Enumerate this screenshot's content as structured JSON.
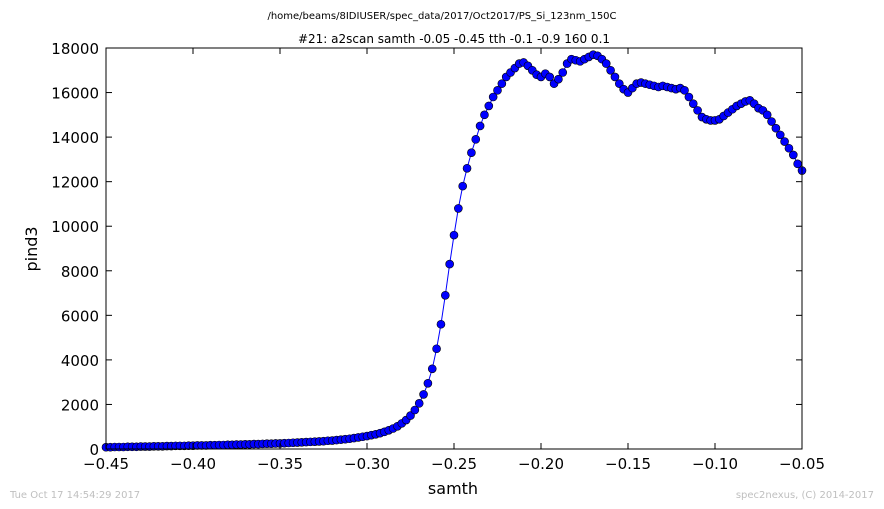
{
  "figure": {
    "suptitle": "/home/beams/8IDIUSER/spec_data/2017/Oct2017/PS_Si_123nm_150C",
    "footer_left": "Tue Oct 17 14:54:29 2017",
    "footer_right": "spec2nexus, (C) 2014-2017"
  },
  "colors": {
    "series": "#0000ff",
    "marker_edge": "#000000",
    "axes": "#000000",
    "footer_text": "#bfbfbf"
  },
  "chart_data": {
    "type": "line",
    "title": "#21: a2scan  samth -0.05 -0.45  tth -0.1 -0.9  160 0.1",
    "xlabel": "samth",
    "ylabel": "pind3",
    "xlim": [
      -0.45,
      -0.05
    ],
    "ylim": [
      0,
      18000
    ],
    "xticks": [
      -0.45,
      -0.4,
      -0.35,
      -0.3,
      -0.25,
      -0.2,
      -0.15,
      -0.1,
      -0.05
    ],
    "xtick_labels": [
      "−0.45",
      "−0.40",
      "−0.35",
      "−0.30",
      "−0.25",
      "−0.20",
      "−0.15",
      "−0.10",
      "−0.05"
    ],
    "yticks": [
      0,
      2000,
      4000,
      6000,
      8000,
      10000,
      12000,
      14000,
      16000,
      18000
    ],
    "ytick_labels": [
      "0",
      "2000",
      "4000",
      "6000",
      "8000",
      "10000",
      "12000",
      "14000",
      "16000",
      "18000"
    ],
    "grid": false,
    "legend": "none",
    "marker": "circle",
    "x": [
      -0.45,
      -0.4475,
      -0.445,
      -0.4425,
      -0.44,
      -0.4375,
      -0.435,
      -0.4325,
      -0.43,
      -0.4275,
      -0.425,
      -0.4225,
      -0.42,
      -0.4175,
      -0.415,
      -0.4125,
      -0.41,
      -0.4075,
      -0.405,
      -0.4025,
      -0.4,
      -0.3975,
      -0.395,
      -0.3925,
      -0.39,
      -0.3875,
      -0.385,
      -0.3825,
      -0.38,
      -0.3775,
      -0.375,
      -0.3725,
      -0.37,
      -0.3675,
      -0.365,
      -0.3625,
      -0.36,
      -0.3575,
      -0.355,
      -0.3525,
      -0.35,
      -0.3475,
      -0.345,
      -0.3425,
      -0.34,
      -0.3375,
      -0.335,
      -0.3325,
      -0.33,
      -0.3275,
      -0.325,
      -0.3225,
      -0.32,
      -0.3175,
      -0.315,
      -0.3125,
      -0.31,
      -0.3075,
      -0.305,
      -0.3025,
      -0.3,
      -0.2975,
      -0.295,
      -0.2925,
      -0.29,
      -0.2875,
      -0.285,
      -0.2825,
      -0.28,
      -0.2775,
      -0.275,
      -0.2725,
      -0.27,
      -0.2675,
      -0.265,
      -0.2625,
      -0.26,
      -0.2575,
      -0.255,
      -0.2525,
      -0.25,
      -0.2475,
      -0.245,
      -0.2425,
      -0.24,
      -0.2375,
      -0.235,
      -0.2325,
      -0.23,
      -0.2275,
      -0.225,
      -0.2225,
      -0.22,
      -0.2175,
      -0.215,
      -0.2125,
      -0.21,
      -0.2075,
      -0.205,
      -0.2025,
      -0.2,
      -0.1975,
      -0.195,
      -0.1925,
      -0.19,
      -0.1875,
      -0.185,
      -0.1825,
      -0.18,
      -0.1775,
      -0.175,
      -0.1725,
      -0.17,
      -0.1675,
      -0.165,
      -0.1625,
      -0.16,
      -0.1575,
      -0.155,
      -0.1525,
      -0.15,
      -0.1475,
      -0.145,
      -0.1425,
      -0.14,
      -0.1375,
      -0.135,
      -0.1325,
      -0.13,
      -0.1275,
      -0.125,
      -0.1225,
      -0.12,
      -0.1175,
      -0.115,
      -0.1125,
      -0.11,
      -0.1075,
      -0.105,
      -0.1025,
      -0.1,
      -0.0975,
      -0.095,
      -0.0925,
      -0.09,
      -0.0875,
      -0.085,
      -0.0825,
      -0.08,
      -0.0775,
      -0.075,
      -0.0725,
      -0.07,
      -0.0675,
      -0.065,
      -0.0625,
      -0.06,
      -0.0575,
      -0.055,
      -0.0525,
      -0.05
    ],
    "series": [
      {
        "values": [
          80,
          80,
          90,
          90,
          90,
          100,
          100,
          100,
          110,
          110,
          110,
          120,
          120,
          120,
          130,
          130,
          140,
          140,
          140,
          150,
          150,
          160,
          160,
          160,
          170,
          170,
          180,
          180,
          190,
          190,
          200,
          200,
          210,
          210,
          220,
          220,
          230,
          240,
          240,
          250,
          250,
          260,
          270,
          280,
          290,
          300,
          310,
          320,
          330,
          340,
          350,
          370,
          380,
          400,
          420,
          440,
          460,
          490,
          520,
          550,
          580,
          620,
          660,
          710,
          770,
          840,
          920,
          1020,
          1150,
          1300,
          1500,
          1750,
          2050,
          2450,
          2950,
          3600,
          4500,
          5600,
          6900,
          8300,
          9600,
          10800,
          11800,
          12600,
          13300,
          13900,
          14500,
          15000,
          15400,
          15800,
          16100,
          16400,
          16700,
          16900,
          17100,
          17300,
          17350,
          17200,
          17000,
          16800,
          16700,
          16850,
          16700,
          16400,
          16600,
          16900,
          17300,
          17500,
          17450,
          17400,
          17500,
          17600,
          17700,
          17650,
          17500,
          17300,
          17000,
          16700,
          16400,
          16150,
          16000,
          16200,
          16400,
          16450,
          16400,
          16350,
          16300,
          16250,
          16300,
          16250,
          16200,
          16150,
          16200,
          16100,
          15800,
          15500,
          15200,
          14900,
          14800,
          14750,
          14750,
          14800,
          14950,
          15100,
          15250,
          15400,
          15500,
          15600,
          15650,
          15500,
          15300,
          15200,
          15000,
          14700,
          14400,
          14100,
          13800,
          13500,
          13200,
          12800,
          12500
        ]
      }
    ]
  }
}
